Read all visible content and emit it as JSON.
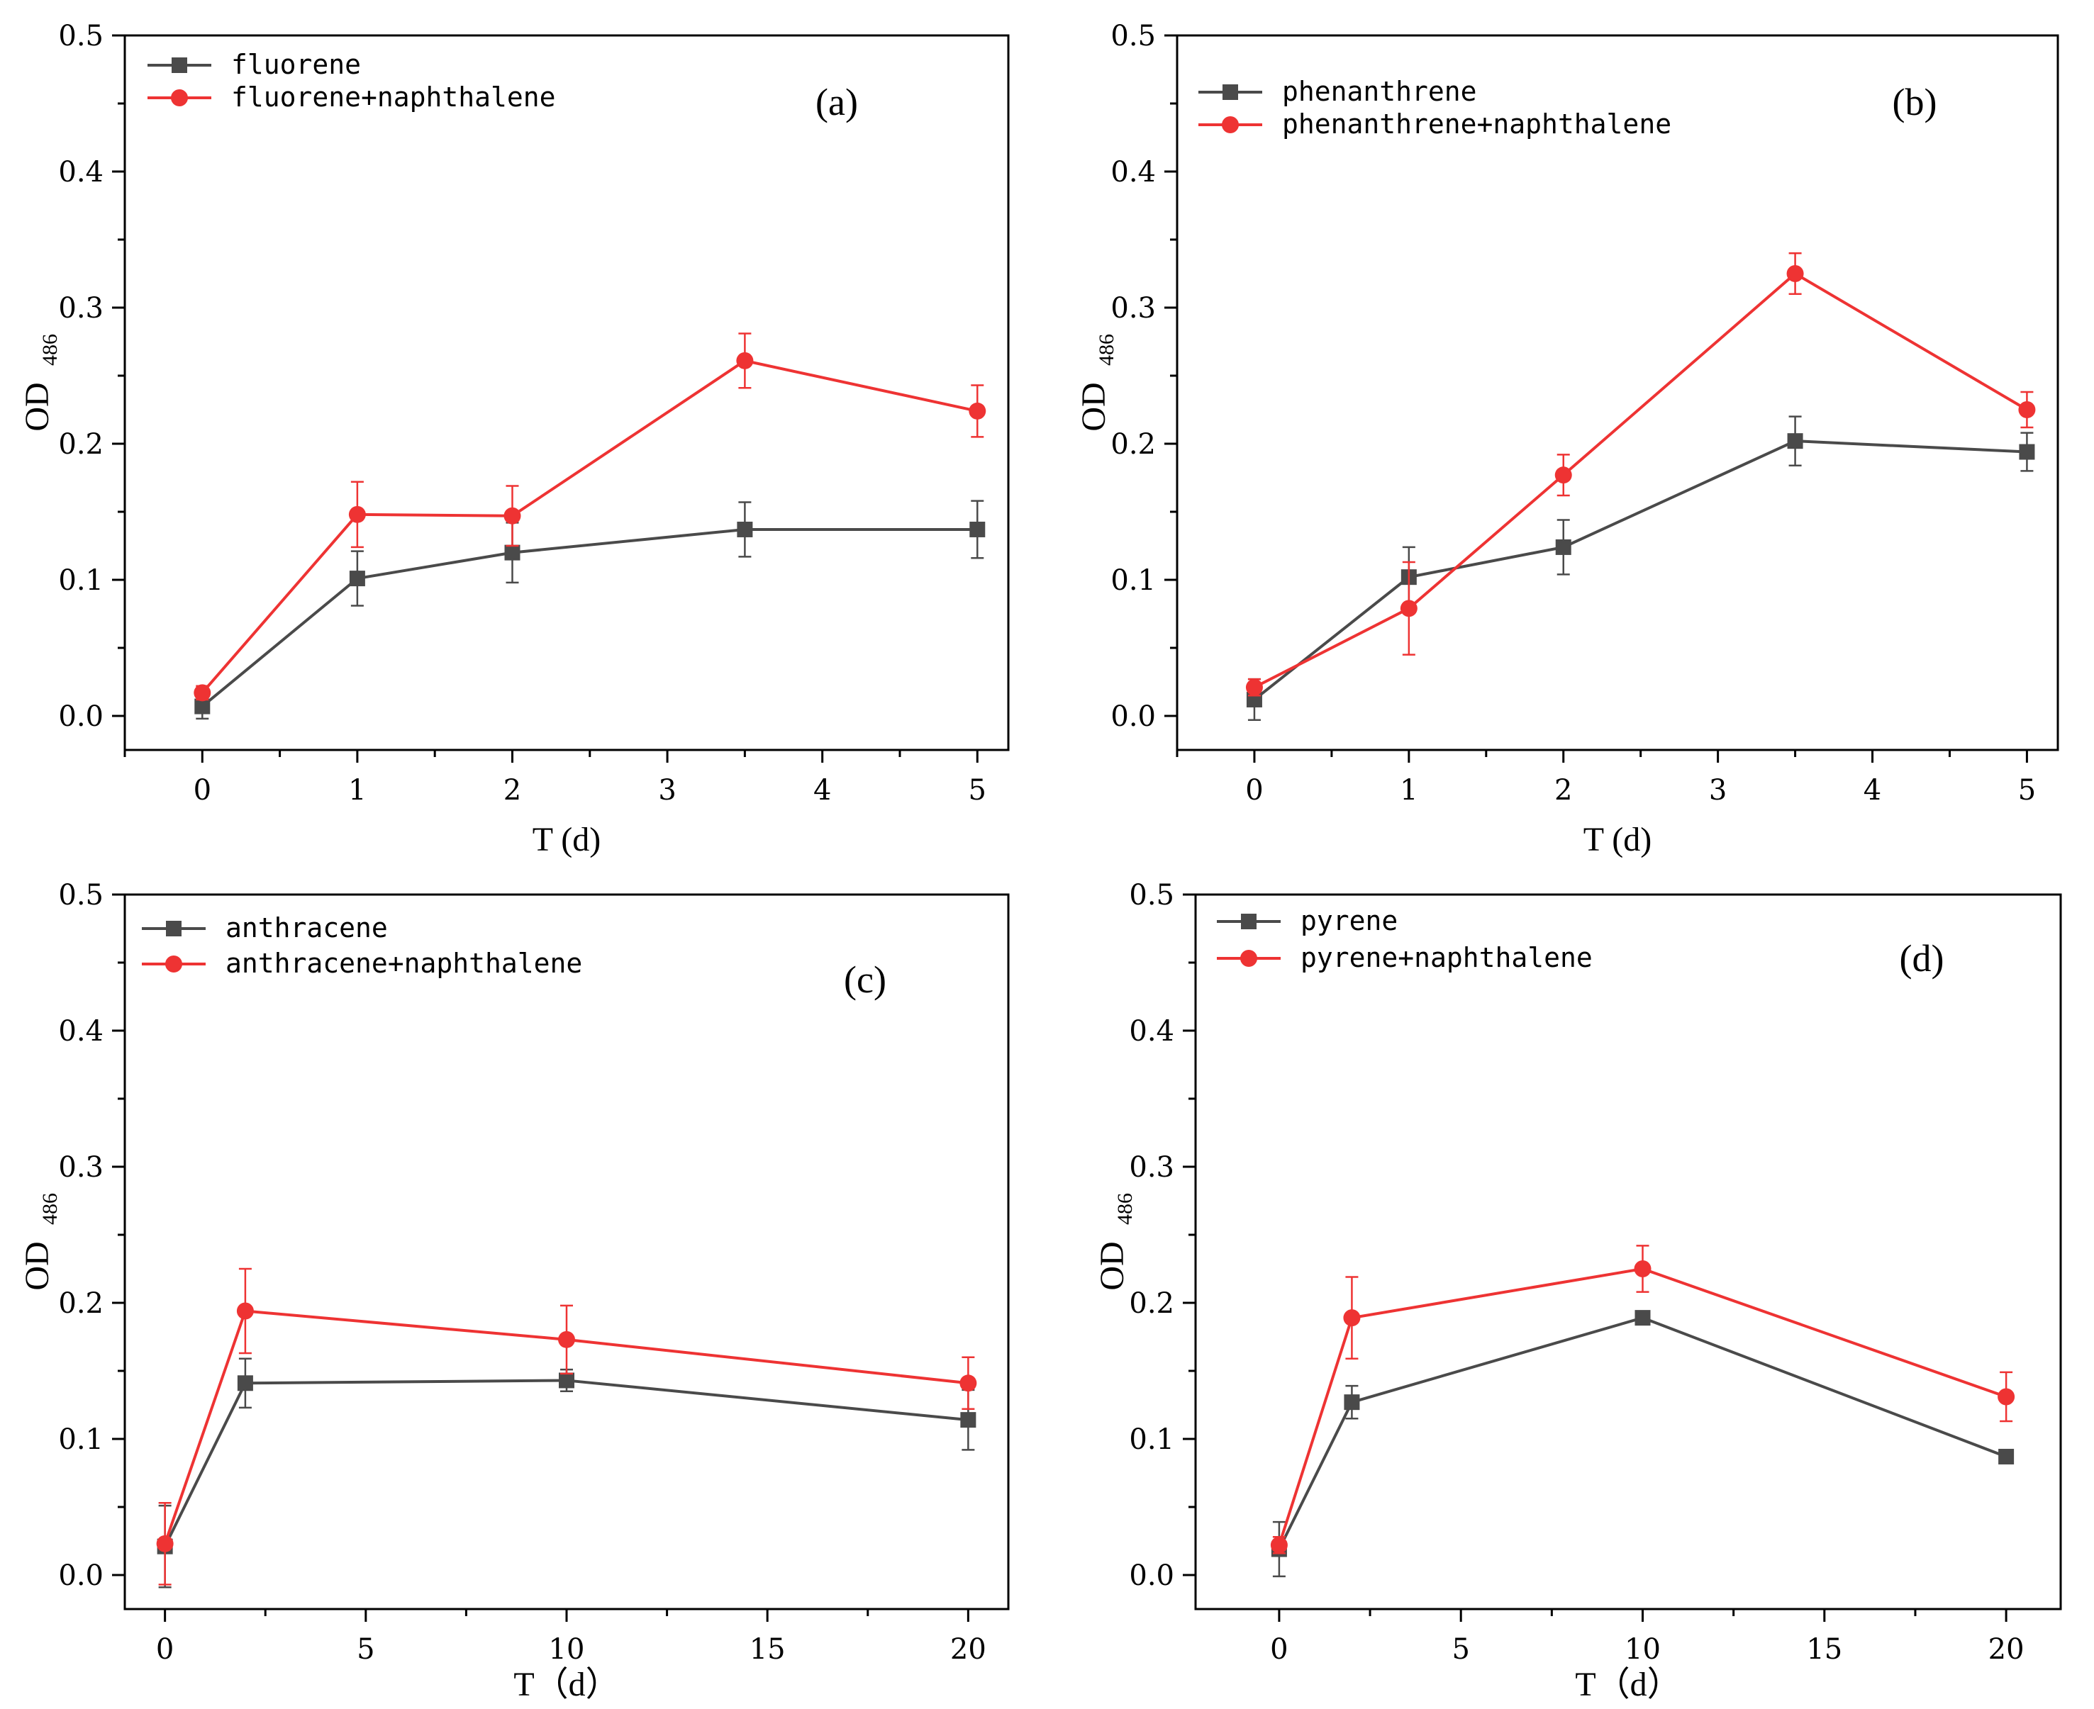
{
  "chart_data": [
    {
      "type": "line",
      "panel_label": "(a)",
      "xlabel": "T (d)",
      "ylabel": "OD",
      "ylabel_sub": "486",
      "xlim": [
        -0.5,
        5.2
      ],
      "ylim": [
        -0.025,
        0.5
      ],
      "xticks": [
        "0",
        "1",
        "2",
        "3",
        "4",
        "5"
      ],
      "xtick_values": [
        0,
        1,
        2,
        3,
        4,
        5
      ],
      "yticks": [
        "0.0",
        "0.1",
        "0.2",
        "0.3",
        "0.4",
        "0.5"
      ],
      "ytick_values": [
        0,
        0.1,
        0.2,
        0.3,
        0.4,
        0.5
      ],
      "legend_location": "top-left",
      "series": [
        {
          "name": "fluorene",
          "color": "#4a4a4a",
          "marker": "square",
          "x": [
            0,
            1,
            2,
            3.5,
            5
          ],
          "y": [
            0.007,
            0.101,
            0.12,
            0.137,
            0.137
          ],
          "err": [
            0.009,
            0.02,
            0.022,
            0.02,
            0.021
          ]
        },
        {
          "name": "fluorene+naphthalene",
          "color": "#ee3333",
          "marker": "circle",
          "x": [
            0,
            1,
            2,
            3.5,
            5
          ],
          "y": [
            0.017,
            0.148,
            0.147,
            0.261,
            0.224
          ],
          "err": [
            0.005,
            0.024,
            0.022,
            0.02,
            0.019
          ]
        }
      ]
    },
    {
      "type": "line",
      "panel_label": "(b)",
      "xlabel": "T (d)",
      "ylabel": "OD",
      "ylabel_sub": "486",
      "xlim": [
        -0.5,
        5.2
      ],
      "ylim": [
        -0.025,
        0.5
      ],
      "xticks": [
        "0",
        "1",
        "2",
        "3",
        "4",
        "5"
      ],
      "xtick_values": [
        0,
        1,
        2,
        3,
        4,
        5
      ],
      "yticks": [
        "0.0",
        "0.1",
        "0.2",
        "0.3",
        "0.4",
        "0.5"
      ],
      "ytick_values": [
        0,
        0.1,
        0.2,
        0.3,
        0.4,
        0.5
      ],
      "legend_location": "top-left",
      "series": [
        {
          "name": "phenanthrene",
          "color": "#4a4a4a",
          "marker": "square",
          "x": [
            0,
            1,
            2,
            3.5,
            5
          ],
          "y": [
            0.012,
            0.102,
            0.124,
            0.202,
            0.194
          ],
          "err": [
            0.015,
            0.022,
            0.02,
            0.018,
            0.014
          ]
        },
        {
          "name": "phenanthrene+naphthalene",
          "color": "#ee3333",
          "marker": "circle",
          "x": [
            0,
            1,
            2,
            3.5,
            5
          ],
          "y": [
            0.021,
            0.079,
            0.177,
            0.325,
            0.225
          ],
          "err": [
            0.006,
            0.034,
            0.015,
            0.015,
            0.013
          ]
        }
      ]
    },
    {
      "type": "line",
      "panel_label": "(c)",
      "xlabel": "T（d）",
      "ylabel": "OD",
      "ylabel_sub": "486",
      "xlim": [
        -1,
        21
      ],
      "ylim": [
        -0.025,
        0.5
      ],
      "xticks": [
        "0",
        "5",
        "10",
        "15",
        "20"
      ],
      "xtick_values": [
        0,
        5,
        10,
        15,
        20
      ],
      "yticks": [
        "0.0",
        "0.1",
        "0.2",
        "0.3",
        "0.4",
        "0.5"
      ],
      "ytick_values": [
        0,
        0.1,
        0.2,
        0.3,
        0.4,
        0.5
      ],
      "legend_location": "top-left",
      "series": [
        {
          "name": "anthracene",
          "color": "#4a4a4a",
          "marker": "square",
          "x": [
            0,
            2,
            10,
            20
          ],
          "y": [
            0.021,
            0.141,
            0.143,
            0.114
          ],
          "err": [
            0.03,
            0.018,
            0.008,
            0.022
          ]
        },
        {
          "name": "anthracene+naphthalene",
          "color": "#ee3333",
          "marker": "circle",
          "x": [
            0,
            2,
            10,
            20
          ],
          "y": [
            0.023,
            0.194,
            0.173,
            0.141
          ],
          "err": [
            0.03,
            0.031,
            0.025,
            0.019
          ]
        }
      ]
    },
    {
      "type": "line",
      "panel_label": "(d)",
      "xlabel": "T（d）",
      "ylabel": "OD",
      "ylabel_sub": "486",
      "xlim": [
        -2.3,
        21.5
      ],
      "ylim": [
        -0.025,
        0.5
      ],
      "xticks": [
        "0",
        "5",
        "10",
        "15",
        "20"
      ],
      "xtick_values": [
        0,
        5,
        10,
        15,
        20
      ],
      "yticks": [
        "0.0",
        "0.1",
        "0.2",
        "0.3",
        "0.4",
        "0.5"
      ],
      "ytick_values": [
        0,
        0.1,
        0.2,
        0.3,
        0.4,
        0.5
      ],
      "legend_location": "top-left",
      "series": [
        {
          "name": "pyrene",
          "color": "#4a4a4a",
          "marker": "square",
          "x": [
            0,
            2,
            10,
            20
          ],
          "y": [
            0.019,
            0.127,
            0.189,
            0.087
          ],
          "err": [
            0.02,
            0.012,
            0.004,
            0.003
          ]
        },
        {
          "name": "pyrene+naphthalene",
          "color": "#ee3333",
          "marker": "circle",
          "x": [
            0,
            2,
            10,
            20
          ],
          "y": [
            0.022,
            0.189,
            0.225,
            0.131
          ],
          "err": [
            0.006,
            0.03,
            0.017,
            0.018
          ]
        }
      ]
    }
  ]
}
